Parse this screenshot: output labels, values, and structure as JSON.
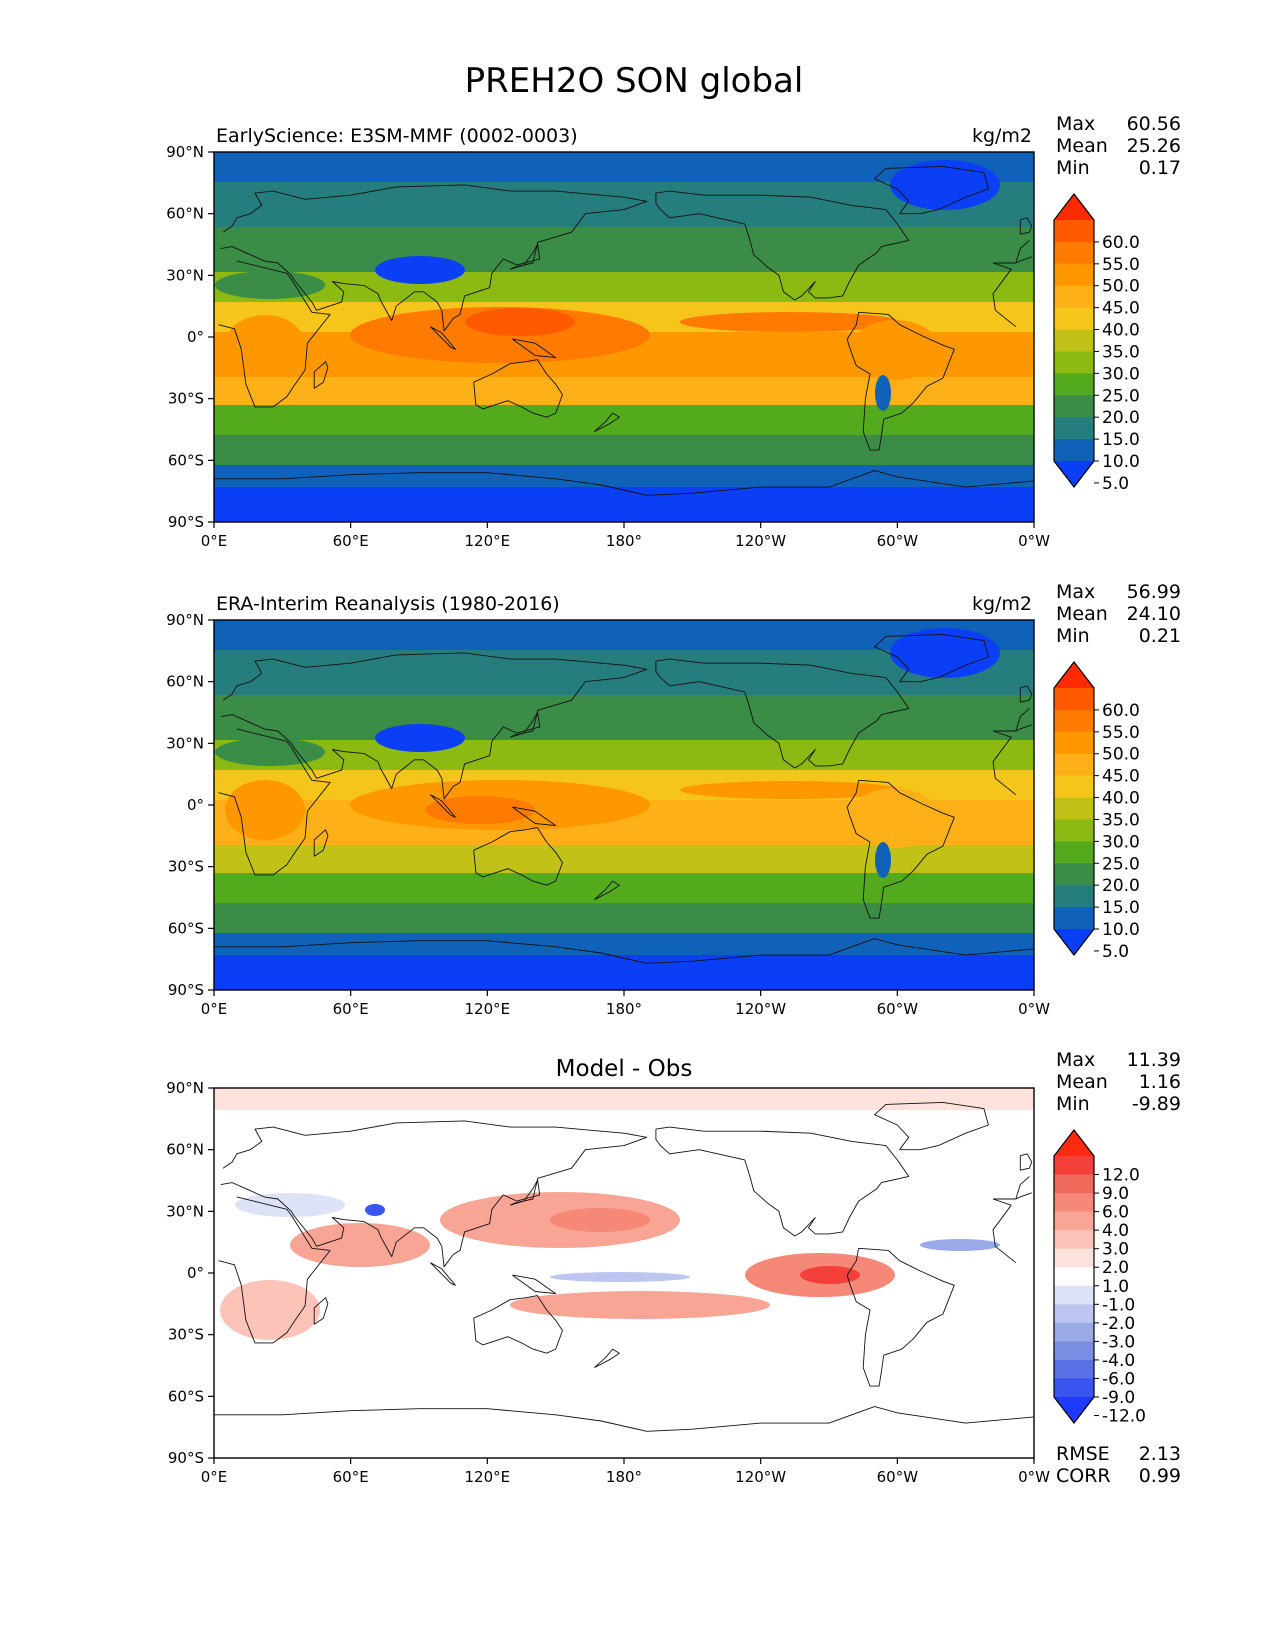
{
  "suptitle": "PREH2O SON global",
  "lon_ticks": [
    "0°E",
    "60°E",
    "120°E",
    "180°",
    "120°W",
    "60°W",
    "0°W"
  ],
  "lat_ticks": [
    "90°N",
    "60°N",
    "30°N",
    "0°",
    "30°S",
    "60°S",
    "90°S"
  ],
  "chart_data": [
    {
      "type": "heatmap",
      "title": "EarlyScience: E3SM-MMF (0002-0003)",
      "units": "kg/m2",
      "xlim": [
        0,
        360
      ],
      "ylim": [
        -90,
        90
      ],
      "grid": false,
      "stats": [
        {
          "label": "Max",
          "value": "60.56"
        },
        {
          "label": "Mean",
          "value": "25.26"
        },
        {
          "label": "Min",
          "value": "0.17"
        }
      ],
      "colorbar": {
        "labels": [
          "60.0",
          "55.0",
          "50.0",
          "45.0",
          "40.0",
          "35.0",
          "30.0",
          "25.0",
          "20.0",
          "15.0",
          "10.0",
          "5.0"
        ],
        "colors": [
          "#ff2a00",
          "#ff5a00",
          "#ff7a00",
          "#ff9800",
          "#fdb018",
          "#f5c51c",
          "#c2c118",
          "#8cba12",
          "#52aa1c",
          "#3a8c46",
          "#267d7d",
          "#0f62b8",
          "#0a3ff5"
        ]
      }
    },
    {
      "type": "heatmap",
      "title": "ERA-Interim Reanalysis (1980-2016)",
      "units": "kg/m2",
      "xlim": [
        0,
        360
      ],
      "ylim": [
        -90,
        90
      ],
      "grid": false,
      "stats": [
        {
          "label": "Max",
          "value": "56.99"
        },
        {
          "label": "Mean",
          "value": "24.10"
        },
        {
          "label": "Min",
          "value": "0.21"
        }
      ],
      "colorbar": {
        "labels": [
          "60.0",
          "55.0",
          "50.0",
          "45.0",
          "40.0",
          "35.0",
          "30.0",
          "25.0",
          "20.0",
          "15.0",
          "10.0",
          "5.0"
        ],
        "colors": [
          "#ff2a00",
          "#ff5a00",
          "#ff7a00",
          "#ff9800",
          "#fdb018",
          "#f5c51c",
          "#c2c118",
          "#8cba12",
          "#52aa1c",
          "#3a8c46",
          "#267d7d",
          "#0f62b8",
          "#0a3ff5"
        ]
      }
    },
    {
      "type": "heatmap",
      "title": "Model - Obs",
      "units": "",
      "xlim": [
        0,
        360
      ],
      "ylim": [
        -90,
        90
      ],
      "grid": false,
      "stats": [
        {
          "label": "Max",
          "value": "11.39"
        },
        {
          "label": "Mean",
          "value": "1.16"
        },
        {
          "label": "Min",
          "value": "-9.89"
        }
      ],
      "extra_stats": [
        {
          "label": "RMSE",
          "value": "2.13"
        },
        {
          "label": "CORR",
          "value": "0.99"
        }
      ],
      "colorbar": {
        "labels": [
          "12.0",
          "9.0",
          "6.0",
          "4.0",
          "3.0",
          "2.0",
          "1.0",
          "-1.0",
          "-2.0",
          "-3.0",
          "-4.0",
          "-6.0",
          "-9.0",
          "-12.0"
        ],
        "colors": [
          "#ff2a10",
          "#f4403a",
          "#f06a5c",
          "#f68878",
          "#f9a596",
          "#fcc4b8",
          "#fde2db",
          "#ffffff",
          "#dde2f7",
          "#bcc6f0",
          "#9aa9e8",
          "#7b8ce3",
          "#5a70e6",
          "#3a55ef",
          "#1f3aff"
        ]
      }
    }
  ]
}
